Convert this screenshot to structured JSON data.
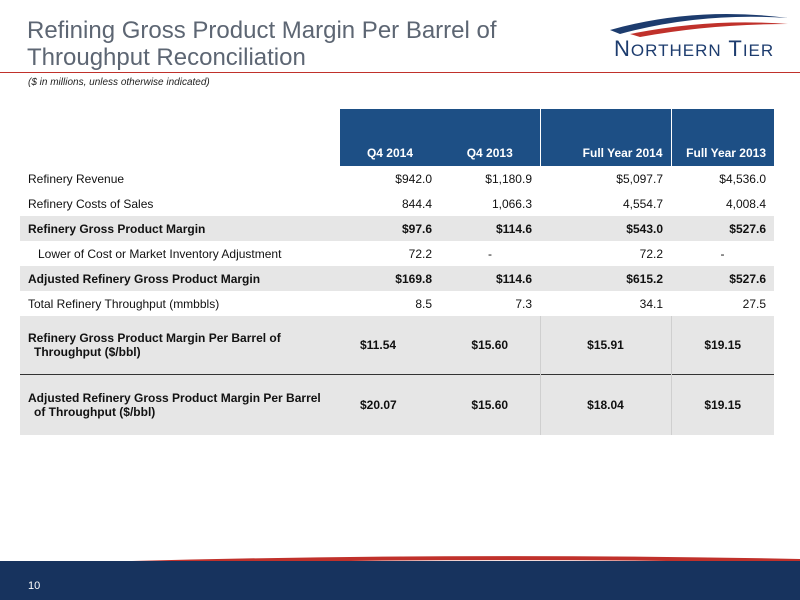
{
  "slide": {
    "title": "Refining Gross Product Margin Per Barrel of Throughput Reconciliation",
    "subtitle": "($ in millions, unless otherwise indicated)",
    "page_number": "10"
  },
  "logo": {
    "text_big_1": "N",
    "text_small_1": "ORTHERN",
    "text_big_2": "T",
    "text_small_2": "IER",
    "colors": {
      "navy": "#1d3c6e",
      "red": "#c0312b"
    }
  },
  "table": {
    "headers": [
      "Q4 2014",
      "Q4 2013",
      "Full Year 2014",
      "Full Year 2013"
    ],
    "rows": [
      {
        "label": "Refinery Revenue",
        "values": [
          "$942.0",
          "$1,180.9",
          "$5,097.7",
          "$4,536.0"
        ]
      },
      {
        "label": "Refinery Costs of Sales",
        "values": [
          "844.4",
          "1,066.3",
          "4,554.7",
          "4,008.4"
        ]
      },
      {
        "label": "Refinery Gross Product Margin",
        "values": [
          "$97.6",
          "$114.6",
          "$543.0",
          "$527.6"
        ]
      },
      {
        "label": "Lower of Cost or Market Inventory Adjustment",
        "values": [
          "72.2",
          "-",
          "72.2",
          "-"
        ]
      },
      {
        "label": "Adjusted Refinery Gross Product Margin",
        "values": [
          "$169.8",
          "$114.6",
          "$615.2",
          "$527.6"
        ]
      },
      {
        "label": "Total Refinery Throughput (mmbbls)",
        "values": [
          "8.5",
          "7.3",
          "34.1",
          "27.5"
        ]
      },
      {
        "label_line1": "Refinery Gross Product Margin Per Barrel of",
        "label_line2": "Throughput ($/bbl)",
        "values": [
          "$11.54",
          "$15.60",
          "$15.91",
          "$19.15"
        ]
      },
      {
        "label_line1": "Adjusted Refinery Gross Product Margin Per Barrel",
        "label_line2": "of Throughput ($/bbl)",
        "values": [
          "$20.07",
          "$15.60",
          "$18.04",
          "$19.15"
        ]
      }
    ]
  },
  "colors": {
    "header_bg": "#1d4f85",
    "shade": "#e6e6e6",
    "footer": "#17335e",
    "accent_red": "#c0312b"
  }
}
